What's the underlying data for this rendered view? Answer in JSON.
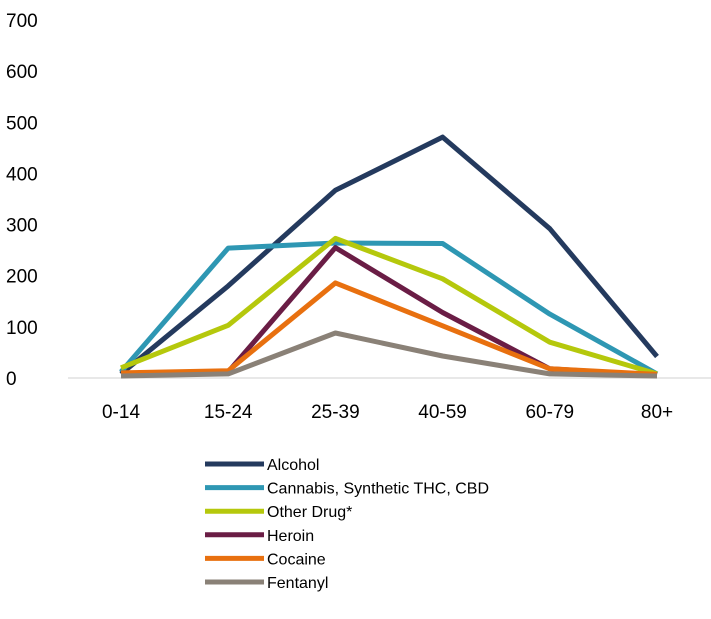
{
  "chart_data": {
    "type": "line",
    "title": "",
    "xlabel": "",
    "ylabel": "",
    "categories": [
      "0-14",
      "15-24",
      "25-39",
      "40-59",
      "60-79",
      "80+"
    ],
    "ylim": [
      0,
      700
    ],
    "yticks": [
      "0",
      "100",
      "200",
      "300",
      "400",
      "500",
      "600",
      "700"
    ],
    "grid": false,
    "legend_position": "bottom",
    "series": [
      {
        "name": "Alcohol",
        "color": "#243a5e",
        "values": [
          8,
          180,
          367,
          471,
          292,
          42
        ]
      },
      {
        "name": "Cannabis, Synthetic THC, CBD",
        "color": "#2e97b3",
        "values": [
          12,
          254,
          264,
          263,
          125,
          8
        ]
      },
      {
        "name": "Other Drug*",
        "color": "#b5c80c",
        "values": [
          20,
          103,
          273,
          194,
          70,
          8
        ]
      },
      {
        "name": "Heroin",
        "color": "#6a1d45",
        "values": [
          8,
          12,
          255,
          128,
          18,
          5
        ]
      },
      {
        "name": "Cocaine",
        "color": "#e8700f",
        "values": [
          10,
          14,
          186,
          102,
          18,
          7
        ]
      },
      {
        "name": "Fentanyl",
        "color": "#8a8177",
        "values": [
          4,
          8,
          88,
          43,
          8,
          4
        ]
      }
    ]
  }
}
